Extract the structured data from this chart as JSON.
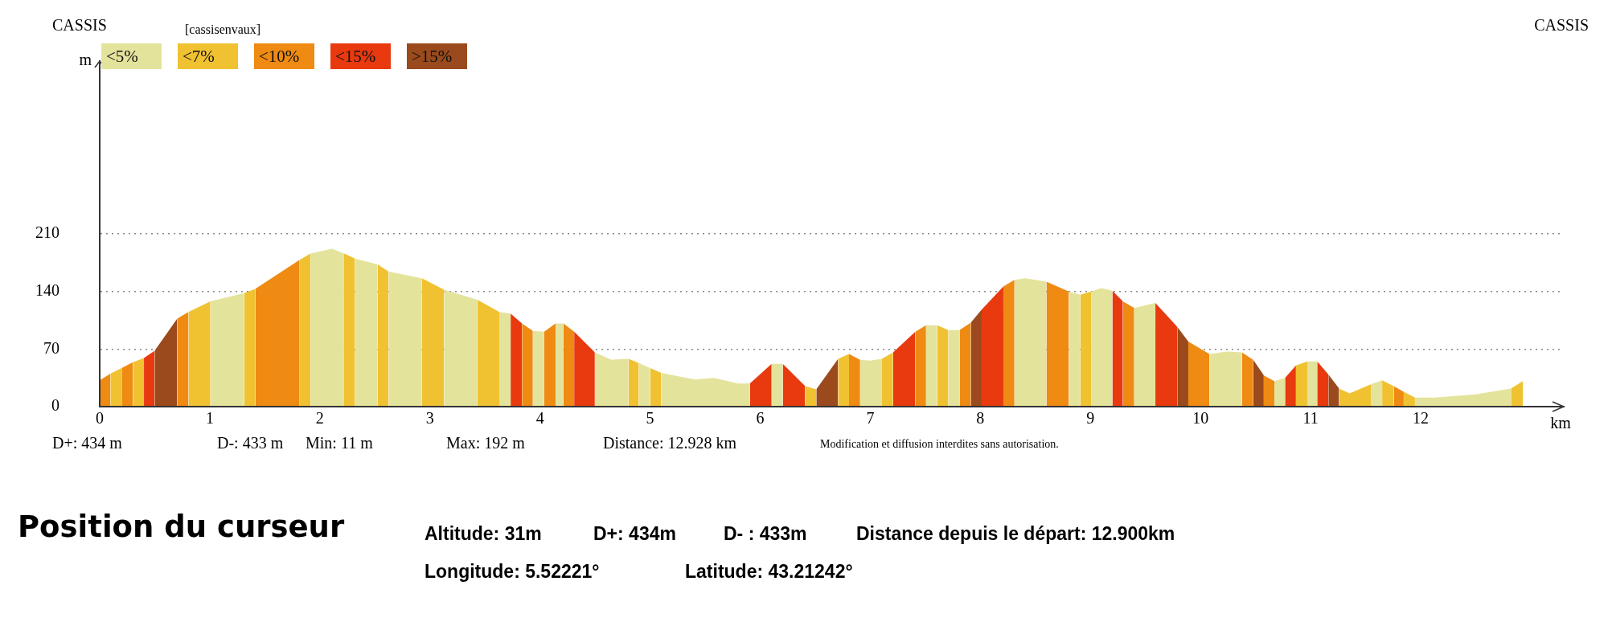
{
  "chart_data": {
    "type": "area",
    "xlabel": "km",
    "ylabel": "m",
    "xlim": [
      0,
      13.3
    ],
    "ylim": [
      0,
      420
    ],
    "xticks": [
      0,
      1,
      2,
      3,
      4,
      5,
      6,
      7,
      8,
      9,
      10,
      11,
      12
    ],
    "yticks": [
      0,
      70,
      140,
      210
    ],
    "grid": "y",
    "line_style": "dotted",
    "legend": "top left",
    "series": [
      {
        "name": "<5%",
        "color": "#e4e39c",
        "x": [
          1.006,
          1.311,
          null,
          1.915,
          2.111,
          2.22,
          null,
          2.32,
          2.525,
          null,
          2.625,
          2.927,
          null,
          3.129,
          3.431,
          null,
          3.63,
          3.733,
          null,
          3.935,
          4.038,
          null,
          4.141,
          4.213,
          null,
          4.498,
          4.65,
          4.803,
          null,
          4.898,
          5.0,
          null,
          5.102,
          5.407,
          5.58,
          5.8,
          5.906,
          null,
          6.104,
          6.205,
          null,
          6.908,
          7.0,
          7.106,
          null,
          7.507,
          7.608,
          null,
          7.71,
          7.811,
          null,
          8.31,
          8.41,
          8.6,
          null,
          8.804,
          8.907,
          null,
          9.006,
          9.1,
          9.199,
          null,
          9.398,
          9.59,
          null,
          10.081,
          10.25,
          10.376,
          null,
          10.671,
          10.768,
          null,
          10.97,
          11.06,
          null,
          11.547,
          11.65,
          null,
          11.948,
          12.125,
          12.5,
          12.82
        ],
        "values": [
          128,
          138,
          null,
          186,
          192,
          186,
          null,
          180,
          173,
          null,
          164,
          156,
          null,
          142,
          130,
          null,
          115,
          113,
          null,
          92,
          91,
          null,
          101,
          101,
          null,
          66,
          57,
          58,
          null,
          53,
          47,
          null,
          41,
          33,
          35,
          28,
          28,
          null,
          52,
          52,
          null,
          57,
          56,
          58,
          null,
          99,
          99,
          null,
          93,
          93,
          null,
          154,
          156,
          152,
          null,
          140,
          136,
          null,
          140,
          144,
          141,
          null,
          120,
          126,
          null,
          64,
          67,
          66,
          null,
          31,
          35,
          null,
          55,
          55,
          null,
          27,
          32,
          null,
          11,
          11,
          15,
          22
        ]
      },
      {
        "name": "<7%",
        "color": "#f0c232",
        "x": [
          0.097,
          0.199,
          null,
          0.302,
          0.402,
          null,
          0.806,
          1.006,
          null,
          1.311,
          1.413,
          null,
          1.812,
          1.915,
          null,
          2.22,
          2.32,
          null,
          2.525,
          2.625,
          null,
          2.927,
          3.129,
          null,
          3.431,
          3.63,
          null,
          4.803,
          4.898,
          null,
          5.0,
          5.102,
          null,
          6.409,
          6.51,
          null,
          6.708,
          6.807,
          null,
          7.106,
          7.207,
          null,
          7.608,
          7.71,
          null,
          8.907,
          9.006,
          null,
          10.867,
          10.97,
          null,
          11.259,
          11.355,
          11.547,
          null,
          11.65,
          11.756,
          null,
          11.846,
          11.948,
          null,
          12.82,
          12.928
        ],
        "values": [
          40,
          47,
          null,
          54,
          59,
          null,
          115,
          128,
          null,
          138,
          143,
          null,
          178,
          186,
          null,
          186,
          180,
          null,
          173,
          164,
          null,
          156,
          142,
          null,
          130,
          115,
          null,
          58,
          53,
          null,
          47,
          41,
          null,
          25,
          21,
          null,
          58,
          64,
          null,
          58,
          66,
          null,
          99,
          93,
          null,
          136,
          140,
          null,
          50,
          55,
          null,
          22,
          16,
          27,
          null,
          32,
          25,
          null,
          18,
          11,
          null,
          22,
          31
        ]
      },
      {
        "name": "<10%",
        "color": "#ef8a13",
        "x": [
          0,
          0.097,
          null,
          0.199,
          0.302,
          null,
          0.704,
          0.806,
          null,
          1.413,
          1.812,
          null,
          3.836,
          3.935,
          null,
          4.038,
          4.141,
          null,
          4.213,
          4.31,
          null,
          6.807,
          6.908,
          null,
          7.41,
          7.507,
          null,
          7.811,
          7.913,
          null,
          8.209,
          8.31,
          null,
          8.6,
          8.804,
          null,
          9.295,
          9.398,
          null,
          9.889,
          10.081,
          null,
          10.376,
          10.479,
          null,
          10.575,
          10.671,
          null,
          11.756,
          11.846
        ],
        "values": [
          32,
          40,
          null,
          47,
          54,
          null,
          107,
          115,
          null,
          143,
          178,
          null,
          101,
          92,
          null,
          91,
          101,
          null,
          101,
          91,
          null,
          64,
          57,
          null,
          91,
          99,
          null,
          93,
          102,
          null,
          146,
          154,
          null,
          152,
          140,
          null,
          128,
          120,
          null,
          79,
          64,
          null,
          66,
          57,
          null,
          38,
          31,
          null,
          25,
          18
        ]
      },
      {
        "name": "<15%",
        "color": "#e8390f",
        "x": [
          0.402,
          0.499,
          null,
          3.733,
          3.836,
          null,
          4.31,
          4.498,
          null,
          5.906,
          6.104,
          null,
          6.205,
          6.409,
          null,
          7.207,
          7.41,
          null,
          8.012,
          8.209,
          null,
          9.199,
          9.295,
          null,
          9.59,
          9.789,
          null,
          10.768,
          10.867,
          null,
          11.06,
          11.162
        ],
        "values": [
          59,
          68,
          null,
          113,
          101,
          null,
          91,
          66,
          null,
          28,
          52,
          null,
          52,
          25,
          null,
          66,
          91,
          null,
          118,
          146,
          null,
          141,
          128,
          null,
          126,
          97,
          null,
          35,
          50,
          null,
          55,
          39
        ]
      },
      {
        "name": ">15%",
        "color": "#9a4a1c",
        "x": [
          0.499,
          0.704,
          null,
          6.51,
          6.708,
          null,
          7.913,
          8.012,
          null,
          9.789,
          9.889,
          null,
          10.479,
          10.575,
          null,
          11.162,
          11.259
        ],
        "values": [
          68,
          107,
          null,
          21,
          58,
          null,
          102,
          118,
          null,
          97,
          79,
          null,
          57,
          38,
          null,
          39,
          22
        ]
      }
    ],
    "annotations": [
      "CASSIS",
      "[cassisenvaux]",
      "CASSIS",
      "D+: 434 m",
      "D-: 433 m",
      "Min: 11 m",
      "Max: 192 m",
      "Distance: 12.928 km",
      "Modification et diffusion interdites sans autorisation.",
      "Position du curseur",
      "Altitude: 31m",
      "D+: 434m",
      "D- : 433m",
      "Distance depuis le départ: 12.900km",
      "Longitude: 5.52221°",
      "Latitude: 43.21242°"
    ]
  }
}
